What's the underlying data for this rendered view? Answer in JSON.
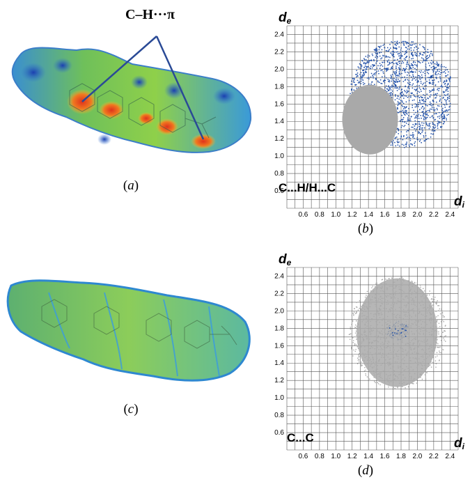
{
  "figure": {
    "panel_a": {
      "caption_letter": "a",
      "annotation": "C–H···π"
    },
    "panel_b": {
      "caption_letter": "b",
      "contact_label": "C...H/H...C"
    },
    "panel_c": {
      "caption_letter": "c"
    },
    "panel_d": {
      "caption_letter": "d",
      "contact_label": "C...C"
    }
  },
  "fingerprint": {
    "y_axis_symbol": "d",
    "y_axis_sub": "e",
    "x_axis_symbol": "d",
    "x_axis_sub": "i",
    "y_ticks": [
      "0.6",
      "0.8",
      "1.0",
      "1.2",
      "1.4",
      "1.6",
      "1.8",
      "2.0",
      "2.2",
      "2.4"
    ],
    "x_ticks": [
      "0.6",
      "0.8",
      "1.0",
      "1.2",
      "1.4",
      "1.6",
      "1.8",
      "2.0",
      "2.2",
      "2.4"
    ]
  },
  "colors": {
    "highlight_blue": "#1f4fa8",
    "grey_points": "#a9a9a9",
    "grid": "#555555",
    "annotation_line": "#2a4a96"
  }
}
